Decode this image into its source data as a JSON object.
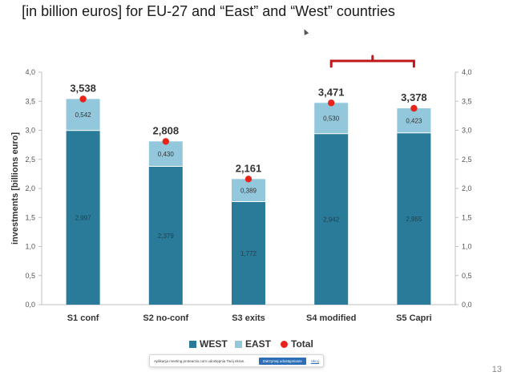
{
  "title": "[in billion euros] for  EU-27 and “East” and “West” countries",
  "notification": {
    "text": "Aplikacja meeting.proteactio.com udostępnia Twój ekran.",
    "stop_label": "Zatrzymaj udostępnianie",
    "hide_label": "Ukryj"
  },
  "page_number": "13",
  "chart_data": {
    "type": "bar",
    "stacked": true,
    "categories": [
      "S1 conf",
      "S2 no-conf",
      "S3 exits",
      "S4 modified",
      "S5 Capri"
    ],
    "series": [
      {
        "name": "WEST",
        "color": "#2a7b99",
        "values": [
          2.997,
          2.379,
          1.772,
          2.942,
          2.955
        ],
        "labels": [
          "2,997",
          "2,379",
          "1,772",
          "2,942",
          "2,955"
        ]
      },
      {
        "name": "EAST",
        "color": "#93c8dc",
        "values": [
          0.542,
          0.43,
          0.389,
          0.53,
          0.423
        ],
        "labels": [
          "0,542",
          "0,430",
          "0,389",
          "0,530",
          "0,423"
        ]
      }
    ],
    "total": {
      "name": "Total",
      "color": "#e8231a",
      "values": [
        3.538,
        2.808,
        2.161,
        3.471,
        3.378
      ],
      "labels": [
        "3,538",
        "2,808",
        "2,161",
        "3,471",
        "3,378"
      ]
    },
    "ylabel": "investments [billions euro]",
    "ylim": [
      0,
      4.0
    ],
    "yticks": [
      "0,0",
      "0,5",
      "1,0",
      "1,5",
      "2,0",
      "2,5",
      "3,0",
      "3,5",
      "4,0"
    ],
    "secondary_y_axis": true,
    "grid": false,
    "legend_position": "bottom",
    "bracket": {
      "from_category": "S4 modified",
      "to_category": "S5 Capri",
      "color": "#c0181a"
    }
  }
}
